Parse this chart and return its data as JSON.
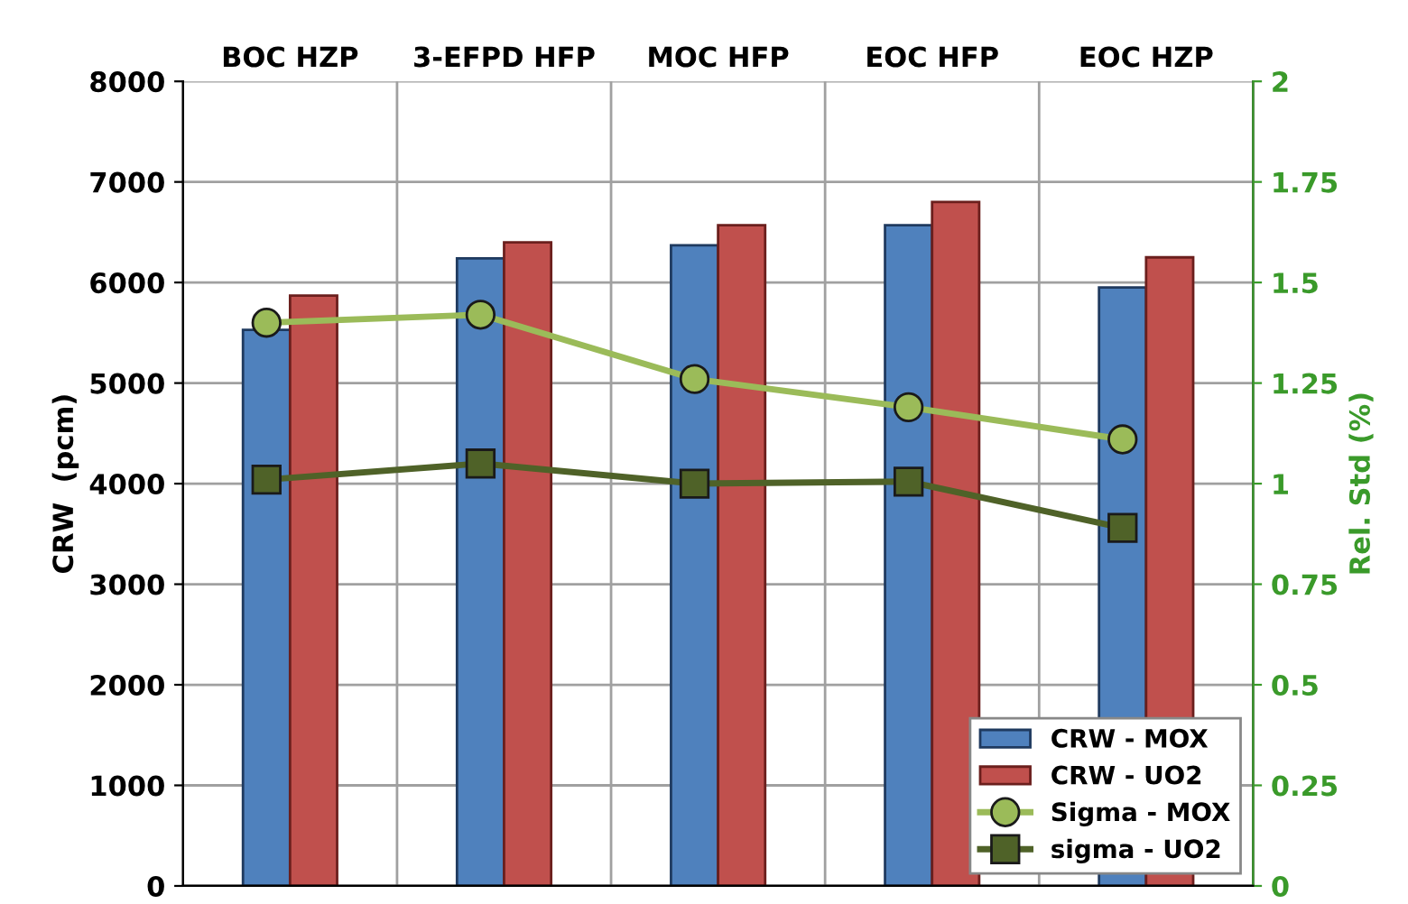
{
  "chart_data": {
    "type": "bar",
    "categories": [
      "BOC HZP",
      "3-EFPD HFP",
      "MOC HFP",
      "EOC HFP",
      "EOC HZP"
    ],
    "ylabel": "CRW  (pcm)",
    "y2label": "Rel. Std (%)",
    "ylim": [
      0,
      8000
    ],
    "yticks": [
      0,
      1000,
      2000,
      3000,
      4000,
      5000,
      6000,
      7000,
      8000
    ],
    "y2lim": [
      0,
      2
    ],
    "y2ticks": [
      0,
      0.25,
      0.5,
      0.75,
      1,
      1.25,
      1.5,
      1.75,
      2
    ],
    "grid": true,
    "legend": "bottom right",
    "series": [
      {
        "name": "CRW - MOX",
        "color": "#4f81bd",
        "values": [
          5530,
          6240,
          6370,
          6570,
          5950
        ]
      },
      {
        "name": "CRW - UO2",
        "color": "#c0504d",
        "values": [
          5870,
          6400,
          6570,
          6800,
          6250
        ]
      },
      {
        "name": "Sigma - MOX",
        "type": "line",
        "axis": "y2",
        "marker": "circle",
        "color": "#9bbb59",
        "values": [
          1.4,
          1.42,
          1.26,
          1.19,
          1.11
        ]
      },
      {
        "name": "sigma - UO2",
        "type": "line",
        "axis": "y2",
        "marker": "square",
        "color": "#4f6228",
        "values": [
          1.01,
          1.05,
          1.0,
          1.005,
          0.89
        ]
      }
    ]
  }
}
